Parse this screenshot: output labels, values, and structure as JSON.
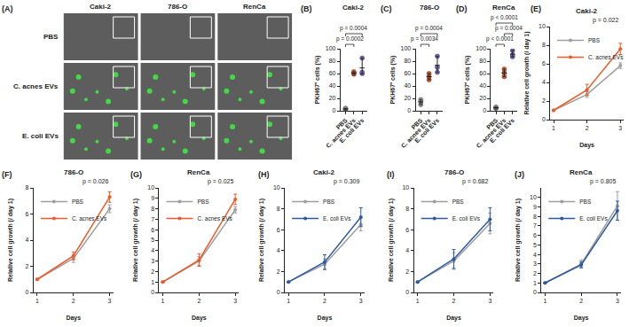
{
  "panel_a": {
    "panel": "(A)",
    "columns": [
      "Caki-2",
      "786-O",
      "RenCa"
    ],
    "rows": [
      "PBS",
      "C. acnes EVs",
      "E. coli EVs"
    ]
  },
  "chart_data": [
    {
      "panel": "(B)",
      "type": "dot",
      "title": "Caki-2",
      "y_label": "PKH67⁺ cells (%)",
      "categories": [
        "PBS",
        "C. acnes EVs",
        "E. coli EVs"
      ],
      "colors": [
        "#9e9e9e",
        "#f05a28",
        "#7b68c8"
      ],
      "values": [
        [
          2,
          3,
          4
        ],
        [
          59,
          61,
          63
        ],
        [
          60,
          62,
          85
        ]
      ],
      "ylim": [
        0,
        100
      ],
      "yticks": [
        0,
        20,
        40,
        60,
        80,
        100
      ],
      "comparisons": [
        {
          "from": "PBS",
          "to": "C. acnes EVs",
          "label": "p = 0.0002"
        },
        {
          "from": "PBS",
          "to": "E. coli EVs",
          "label": "p = 0.0004"
        }
      ]
    },
    {
      "panel": "(C)",
      "type": "dot",
      "title": "786-O",
      "y_label": "PKH67⁺ cells (%)",
      "categories": [
        "PBS",
        "C. acnes EVs",
        "E. coli EVs"
      ],
      "colors": [
        "#9e9e9e",
        "#f05a28",
        "#7b68c8"
      ],
      "values": [
        [
          10,
          15,
          18
        ],
        [
          50,
          55,
          60
        ],
        [
          62,
          70,
          88
        ]
      ],
      "ylim": [
        0,
        100
      ],
      "yticks": [
        0,
        20,
        40,
        60,
        80,
        100
      ],
      "comparisons": [
        {
          "from": "PBS",
          "to": "C. acnes EVs",
          "label": "p = 0.0034"
        },
        {
          "from": "PBS",
          "to": "E. coli EVs",
          "label": "p = 0.0004"
        }
      ]
    },
    {
      "panel": "(D)",
      "type": "dot",
      "title": "RenCa",
      "y_label": "PKH67⁺ cells (%)",
      "categories": [
        "PBS",
        "C. acnes EVs",
        "E. coli EVs"
      ],
      "colors": [
        "#9e9e9e",
        "#f05a28",
        "#7b68c8"
      ],
      "values": [
        [
          4,
          5,
          6
        ],
        [
          55,
          61,
          67
        ],
        [
          87,
          90,
          97
        ]
      ],
      "ylim": [
        0,
        100
      ],
      "yticks": [
        0,
        20,
        40,
        60,
        80,
        100
      ],
      "comparisons": [
        {
          "from": "PBS",
          "to": "C. acnes EVs",
          "label": "p < 0.0001"
        },
        {
          "from": "C. acnes EVs",
          "to": "E. coli EVs",
          "label": "p = 0.0004"
        },
        {
          "from": "PBS",
          "to": "E. coli EVs",
          "label": "p < 0.0001"
        }
      ]
    },
    {
      "panel": "(E)",
      "type": "line",
      "title": "Caki-2",
      "x_label": "Days",
      "y_label": "Relative cell growth (/ day 1)",
      "x": [
        1,
        2,
        3
      ],
      "xlim": [
        0.9,
        3.1
      ],
      "xticks": [
        1,
        2,
        3
      ],
      "ylim": [
        0,
        10
      ],
      "yticks": [
        0,
        2,
        4,
        6,
        8,
        10
      ],
      "legend": "upper left",
      "p_value": "p = 0.022",
      "series": [
        {
          "name": "PBS",
          "color": "#9e9e9e",
          "marker": "circle",
          "values": [
            1,
            2.7,
            5.8
          ],
          "errors": [
            0,
            0.3,
            0.3
          ]
        },
        {
          "name": "C. acnes EVs",
          "color": "#f05a28",
          "marker": "circle",
          "values": [
            1,
            3.2,
            7.6
          ],
          "errors": [
            0,
            0.6,
            0.6
          ]
        }
      ]
    },
    {
      "panel": "(F)",
      "type": "line",
      "title": "786-O",
      "x_label": "Days",
      "y_label": "Relative cell growth (/ day 1)",
      "x": [
        1,
        2,
        3
      ],
      "xlim": [
        0.9,
        3.1
      ],
      "xticks": [
        1,
        2,
        3
      ],
      "ylim": [
        0,
        8
      ],
      "yticks": [
        0,
        2,
        4,
        6,
        8
      ],
      "legend": "upper left",
      "p_value": "p = 0.026",
      "series": [
        {
          "name": "PBS",
          "color": "#9e9e9e",
          "marker": "circle",
          "values": [
            1,
            2.6,
            6.4
          ],
          "errors": [
            0,
            0.3,
            0.3
          ]
        },
        {
          "name": "C. acnes EVs",
          "color": "#f05a28",
          "marker": "circle",
          "values": [
            1,
            2.8,
            7.3
          ],
          "errors": [
            0,
            0.3,
            0.4
          ]
        }
      ]
    },
    {
      "panel": "(G)",
      "type": "line",
      "title": "RenCa",
      "x_label": "Days",
      "y_label": "Relative cell growth (/ day 1)",
      "x": [
        1,
        2,
        3
      ],
      "xlim": [
        0.9,
        3.1
      ],
      "xticks": [
        1,
        2,
        3
      ],
      "ylim": [
        0,
        10
      ],
      "yticks": [
        0,
        1,
        2,
        3,
        4,
        5,
        6,
        7,
        8,
        9,
        10
      ],
      "legend": "upper left",
      "p_value": "p = 0.025",
      "series": [
        {
          "name": "PBS",
          "color": "#9e9e9e",
          "marker": "circle",
          "values": [
            1,
            3.0,
            7.9
          ],
          "errors": [
            0,
            0.4,
            0.3
          ]
        },
        {
          "name": "C. acnes EVs",
          "color": "#f05a28",
          "marker": "circle",
          "values": [
            1,
            3.1,
            8.9
          ],
          "errors": [
            0,
            0.6,
            0.5
          ]
        }
      ]
    },
    {
      "panel": "(H)",
      "type": "line",
      "title": "Caki-2",
      "x_label": "Days",
      "y_label": "Relative cell growth (/ day 1)",
      "x": [
        1,
        2,
        3
      ],
      "xlim": [
        0.9,
        3.1
      ],
      "xticks": [
        1,
        2,
        3
      ],
      "ylim": [
        0,
        10
      ],
      "yticks": [
        0,
        2,
        4,
        6,
        8,
        10
      ],
      "legend": "upper left",
      "p_value": "p = 0.309",
      "series": [
        {
          "name": "PBS",
          "color": "#9e9e9e",
          "marker": "circle",
          "values": [
            1,
            2.7,
            6.5
          ],
          "errors": [
            0,
            0.5,
            0.6
          ]
        },
        {
          "name": "E. coli EVs",
          "color": "#2c5aa0",
          "marker": "circle",
          "values": [
            1,
            2.9,
            7.2
          ],
          "errors": [
            0,
            0.7,
            0.9
          ]
        }
      ]
    },
    {
      "panel": "(I)",
      "type": "line",
      "title": "786-O",
      "x_label": "Days",
      "y_label": "Relative cell growth (/ day 1)",
      "x": [
        1,
        2,
        3
      ],
      "xlim": [
        0.9,
        3.1
      ],
      "xticks": [
        1,
        2,
        3
      ],
      "ylim": [
        0,
        10
      ],
      "yticks": [
        0,
        2,
        4,
        6,
        8,
        10
      ],
      "legend": "upper left",
      "p_value": "p = 0.682",
      "series": [
        {
          "name": "PBS",
          "color": "#9e9e9e",
          "marker": "circle",
          "values": [
            1,
            3.0,
            6.6
          ],
          "errors": [
            0,
            0.8,
            1.0
          ]
        },
        {
          "name": "E. coli EVs",
          "color": "#2c5aa0",
          "marker": "circle",
          "values": [
            1,
            3.2,
            7.0
          ],
          "errors": [
            0,
            0.9,
            1.1
          ]
        }
      ]
    },
    {
      "panel": "(J)",
      "type": "line",
      "title": "RenCa",
      "x_label": "Days",
      "y_label": "Relative cell growth (/ day 1)",
      "x": [
        1,
        2,
        3
      ],
      "xlim": [
        0.9,
        3.1
      ],
      "xticks": [
        1,
        2,
        3
      ],
      "ylim": [
        0,
        11
      ],
      "yticks": [
        0,
        1,
        2,
        3,
        4,
        5,
        6,
        7,
        8,
        9,
        10
      ],
      "legend": "upper left",
      "p_value": "p = 0.805",
      "series": [
        {
          "name": "PBS",
          "color": "#9e9e9e",
          "marker": "circle",
          "values": [
            1,
            3.0,
            9.1
          ],
          "errors": [
            0,
            0.4,
            1.5
          ]
        },
        {
          "name": "E. coli EVs",
          "color": "#2c5aa0",
          "marker": "circle",
          "values": [
            1,
            2.9,
            8.6
          ],
          "errors": [
            0,
            0.3,
            1.0
          ]
        }
      ]
    }
  ]
}
